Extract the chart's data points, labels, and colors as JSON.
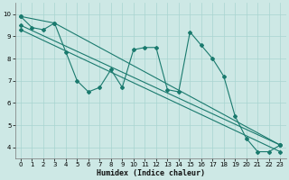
{
  "xlabel": "Humidex (Indice chaleur)",
  "bg_color": "#cde8e5",
  "grid_color": "#a8d4d0",
  "line_color": "#1a7a6e",
  "xlim": [
    -0.5,
    23.5
  ],
  "ylim": [
    3.5,
    10.5
  ],
  "yticks": [
    4,
    5,
    6,
    7,
    8,
    9,
    10
  ],
  "xticks": [
    0,
    1,
    2,
    3,
    4,
    5,
    6,
    7,
    8,
    9,
    10,
    11,
    12,
    13,
    14,
    15,
    16,
    17,
    18,
    19,
    20,
    21,
    22,
    23
  ],
  "series": {
    "line1_x": [
      0,
      1,
      2,
      3,
      4,
      5,
      6,
      7,
      8,
      9,
      10,
      11,
      12,
      13,
      14,
      15,
      16,
      17,
      18,
      19,
      20,
      21,
      22,
      23
    ],
    "line1_y": [
      9.9,
      9.4,
      9.3,
      9.6,
      8.3,
      7.0,
      6.5,
      6.7,
      7.5,
      6.7,
      8.4,
      8.5,
      8.5,
      6.6,
      6.5,
      9.2,
      8.6,
      8.0,
      7.2,
      5.4,
      4.4,
      3.8,
      3.8,
      4.1
    ],
    "line2_x": [
      0,
      3,
      23
    ],
    "line2_y": [
      9.9,
      9.6,
      4.1
    ],
    "line3_x": [
      0,
      23
    ],
    "line3_y": [
      9.5,
      4.1
    ],
    "line4_x": [
      0,
      23
    ],
    "line4_y": [
      9.3,
      3.8
    ]
  },
  "tick_fontsize": 5.0,
  "label_fontsize": 6.0
}
